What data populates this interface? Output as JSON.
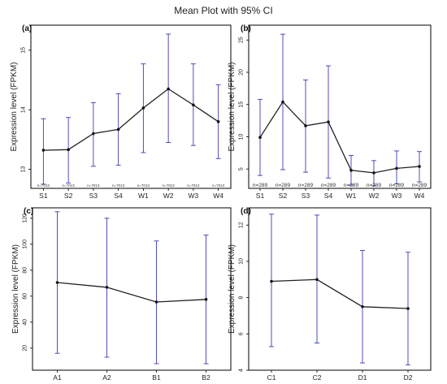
{
  "figure_title": "Mean Plot with 95% CI",
  "chart_data": [
    {
      "panel": "(a)",
      "type": "line",
      "ylabel": "Expression level (FPKM)",
      "categories": [
        "S1",
        "S2",
        "S3",
        "S4",
        "W1",
        "W2",
        "W3",
        "W4"
      ],
      "values": [
        13.32,
        13.33,
        13.6,
        13.67,
        14.03,
        14.35,
        14.08,
        13.8
      ],
      "ci_low": [
        12.75,
        12.77,
        13.05,
        13.07,
        13.28,
        13.45,
        13.4,
        13.18
      ],
      "ci_high": [
        13.85,
        13.87,
        14.12,
        14.27,
        14.77,
        15.27,
        14.77,
        14.42
      ],
      "n_labels": [
        "n=7013",
        "n=7013",
        "n=7013",
        "n=7013",
        "n=7013",
        "n=7013",
        "n=7013",
        "n=7013"
      ],
      "ylim": [
        12.68,
        15.42
      ],
      "yticks": [
        13,
        14,
        15
      ],
      "error_bar_color": "#3b3bb3"
    },
    {
      "panel": "(b)",
      "type": "line",
      "ylabel": "Expression level (FPKM)",
      "categories": [
        "S1",
        "S2",
        "S3",
        "S4",
        "W1",
        "W2",
        "W3",
        "W4"
      ],
      "values": [
        9.9,
        15.4,
        11.7,
        12.3,
        4.8,
        4.4,
        5.1,
        5.4
      ],
      "ci_low": [
        4.0,
        4.9,
        4.5,
        3.6,
        2.5,
        2.4,
        2.7,
        3.0
      ],
      "ci_high": [
        15.8,
        25.9,
        18.8,
        21.0,
        7.1,
        6.3,
        7.8,
        7.7
      ],
      "n_labels": [
        "n=289",
        "n=289",
        "n=289",
        "n=289",
        "n=289",
        "n=289",
        "n=289",
        "n=289"
      ],
      "ylim": [
        2.0,
        27.3
      ],
      "yticks": [
        5,
        10,
        15,
        20,
        25
      ],
      "error_bar_color": "#3b3bb3"
    },
    {
      "panel": "(c)",
      "type": "line",
      "ylabel": "Expression level (FPKM)",
      "categories": [
        "A1",
        "A2",
        "B1",
        "B2"
      ],
      "values": [
        70.5,
        66.8,
        55.5,
        57.5
      ],
      "ci_low": [
        16,
        13,
        8,
        8
      ],
      "ci_high": [
        125,
        120,
        102.5,
        107
      ],
      "ylim": [
        3,
        128
      ],
      "yticks": [
        20,
        40,
        60,
        80,
        100,
        120
      ],
      "error_bar_color": "#3b3bb3"
    },
    {
      "panel": "(d)",
      "type": "line",
      "ylabel": "Expression level (FPKM)",
      "categories": [
        "C1",
        "C2",
        "D1",
        "D2"
      ],
      "values": [
        8.9,
        9.0,
        7.5,
        7.4
      ],
      "ci_low": [
        5.3,
        5.5,
        4.4,
        4.3
      ],
      "ci_high": [
        12.6,
        12.55,
        10.6,
        10.5
      ],
      "ylim": [
        4.0,
        12.95
      ],
      "yticks": [
        4,
        6,
        8,
        10,
        12
      ],
      "error_bar_color": "#3b3bb3"
    }
  ]
}
